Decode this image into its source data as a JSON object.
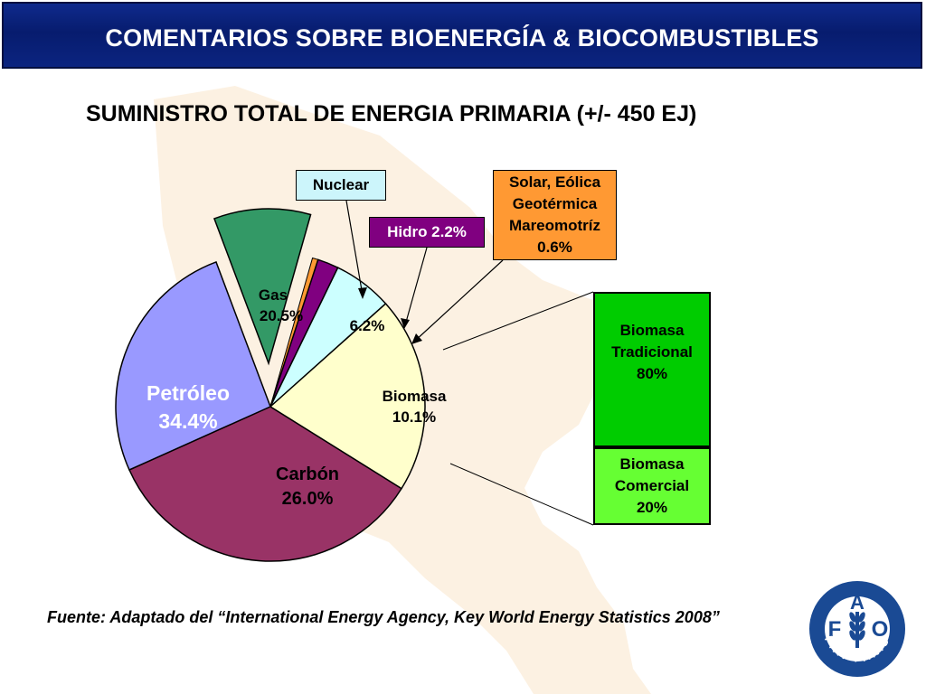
{
  "header": {
    "title": "COMENTARIOS SOBRE BIOENERGÍA & BIOCOMBUSTIBLES"
  },
  "chart_data": {
    "type": "pie",
    "title": "SUMINISTRO TOTAL DE  ENERGIA PRIMARIA (+/- 450 EJ)",
    "unit": "%",
    "slices": [
      {
        "name": "Petróleo",
        "label": "Petróleo",
        "value_label": "34.4%",
        "value": 34.4,
        "color": "#993366"
      },
      {
        "name": "Carbón",
        "label": "Carbón",
        "value_label": "26.0%",
        "value": 26.0,
        "color": "#9999ff"
      },
      {
        "name": "Biomasa",
        "label": "Biomasa",
        "value_label": "10.1%",
        "value": 10.1,
        "color": "#339966",
        "exploded": true
      },
      {
        "name": "Solar, Eólica Geotérmica Mareomotríz",
        "label": "",
        "value_label": "0.6%",
        "value": 0.6,
        "color": "#ff9933"
      },
      {
        "name": "Hidro",
        "label": "",
        "value_label": "2.2%",
        "value": 2.2,
        "color": "#800080"
      },
      {
        "name": "Nuclear",
        "label": "",
        "value_label": "6.2%",
        "value": 6.2,
        "color": "#ccffff"
      },
      {
        "name": "Gas",
        "label": "Gas",
        "value_label": "20.5%",
        "value": 20.5,
        "color": "#ffffcc"
      }
    ],
    "callouts": {
      "nuclear": "Nuclear",
      "hidro": "Hidro 2.2%",
      "solar": [
        "Solar, Eólica",
        "Geotérmica",
        "Mareomotríz",
        "0.6%"
      ]
    },
    "biomass_breakdown": [
      {
        "name": "Biomasa Tradicional",
        "lines": [
          "Biomasa",
          "Tradicional",
          "80%"
        ],
        "value": 80,
        "color": "#00cc00"
      },
      {
        "name": "Biomasa Comercial",
        "lines": [
          "Biomasa",
          "Comercial",
          "20%"
        ],
        "value": 20,
        "color": "#66ff33"
      }
    ]
  },
  "footer": {
    "source": "Fuente: Adaptado del “International Energy Agency, Key World Energy Statistics 2008”"
  },
  "logo": {
    "letters": [
      "F",
      "A",
      "O"
    ],
    "motto": "FIAT PANIS"
  }
}
